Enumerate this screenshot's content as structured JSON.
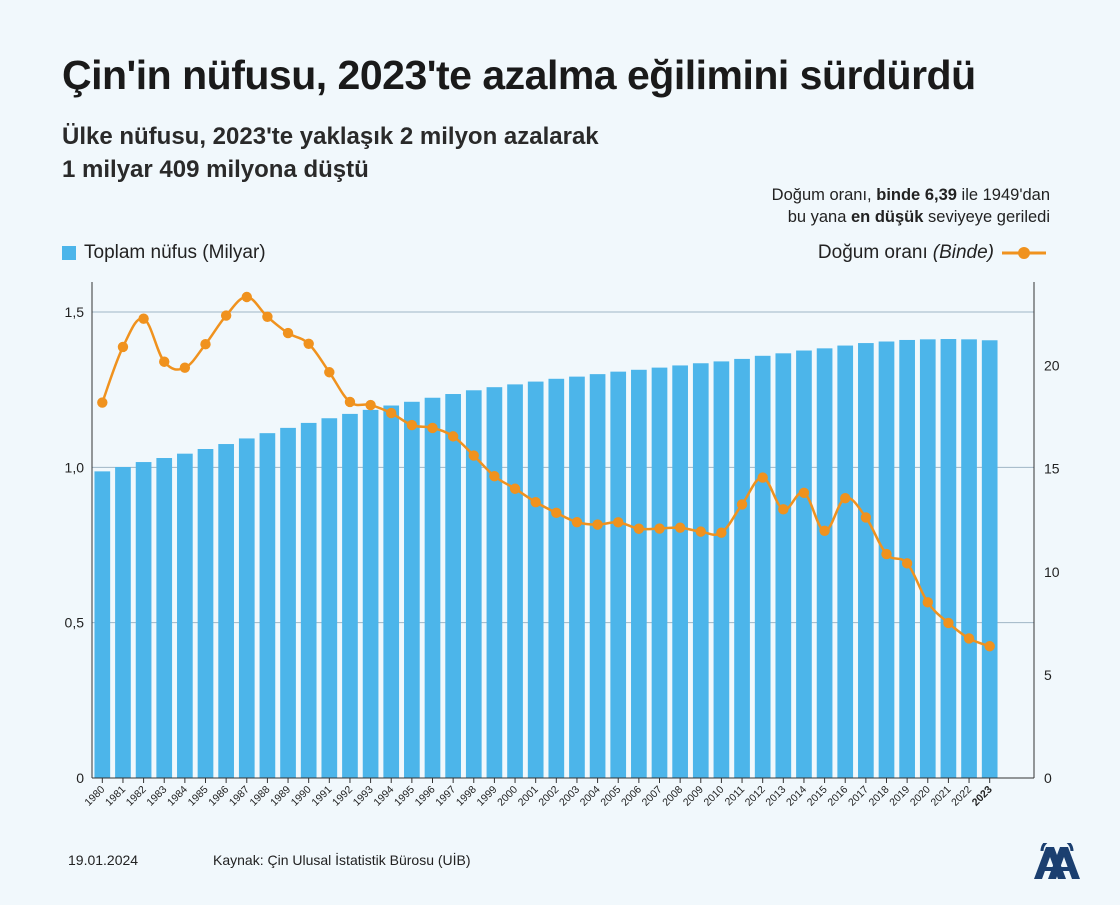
{
  "title": "Çin'in nüfusu, 2023'te azalma eğilimini sürdürdü",
  "subtitle": [
    "Ülke nüfusu, 2023'te yaklaşık 2 milyon azalarak",
    "1 milyar 409 milyona düştü"
  ],
  "note": {
    "line1_a": "Doğum oranı, ",
    "line1_b": "binde 6,39",
    "line1_c": " ile 1949'dan",
    "line2_a": "bu yana ",
    "line2_b": "en düşük",
    "line2_c": " seviyeye geriledi"
  },
  "legend": {
    "bars": "Toplam nüfus (Milyar)",
    "line_label": "Doğum oranı",
    "line_unit": "(Binde)"
  },
  "footer": {
    "date": "19.01.2024",
    "source": "Kaynak: Çin Ulusal İstatistik Bürosu (UİB)"
  },
  "colors": {
    "bar": "#4cb5ea",
    "line": "#f0921e",
    "grid": "#9fb6c6"
  },
  "chart_data": {
    "type": "bar",
    "categories": [
      "1980",
      "1981",
      "1982",
      "1983",
      "1984",
      "1985",
      "1986",
      "1987",
      "1988",
      "1989",
      "1990",
      "1991",
      "1992",
      "1993",
      "1994",
      "1995",
      "1996",
      "1997",
      "1998",
      "1999",
      "2000",
      "2001",
      "2002",
      "2003",
      "2004",
      "2005",
      "2006",
      "2007",
      "2008",
      "2009",
      "2010",
      "2011",
      "2012",
      "2013",
      "2014",
      "2015",
      "2016",
      "2017",
      "2018",
      "2019",
      "2020",
      "2021",
      "2022",
      "2023"
    ],
    "highlight_category": "2023",
    "series": [
      {
        "name": "Toplam nüfus (Milyar)",
        "type": "bar",
        "axis": "left",
        "values": [
          0.987,
          1.001,
          1.017,
          1.03,
          1.044,
          1.059,
          1.075,
          1.093,
          1.11,
          1.127,
          1.143,
          1.158,
          1.172,
          1.185,
          1.199,
          1.211,
          1.224,
          1.236,
          1.248,
          1.258,
          1.267,
          1.276,
          1.285,
          1.292,
          1.3,
          1.308,
          1.314,
          1.321,
          1.328,
          1.335,
          1.341,
          1.349,
          1.359,
          1.367,
          1.376,
          1.383,
          1.392,
          1.4,
          1.405,
          1.41,
          1.412,
          1.413,
          1.412,
          1.409
        ]
      },
      {
        "name": "Doğum oranı (Binde)",
        "type": "line",
        "axis": "right",
        "values": [
          18.21,
          20.91,
          22.28,
          20.19,
          19.9,
          21.04,
          22.43,
          23.33,
          22.37,
          21.58,
          21.06,
          19.68,
          18.24,
          18.09,
          17.7,
          17.12,
          16.98,
          16.57,
          15.64,
          14.64,
          14.03,
          13.38,
          12.86,
          12.41,
          12.29,
          12.4,
          12.09,
          12.1,
          12.14,
          11.95,
          11.9,
          13.27,
          14.57,
          13.03,
          13.83,
          11.99,
          13.57,
          12.64,
          10.86,
          10.41,
          8.52,
          7.52,
          6.77,
          6.39
        ]
      }
    ],
    "y_left": {
      "ylim": [
        0,
        1.5
      ],
      "ticks": [
        0,
        0.5,
        1.0,
        1.5
      ],
      "tick_labels": [
        "0",
        "0,5",
        "1,0",
        "1,5"
      ]
    },
    "y_right": {
      "ylim": [
        0,
        23.33
      ],
      "ticks": [
        0,
        5,
        10,
        15,
        20
      ],
      "tick_labels": [
        "0",
        "5",
        "10",
        "15",
        "20"
      ]
    },
    "grid": true,
    "legend_position": "top"
  }
}
